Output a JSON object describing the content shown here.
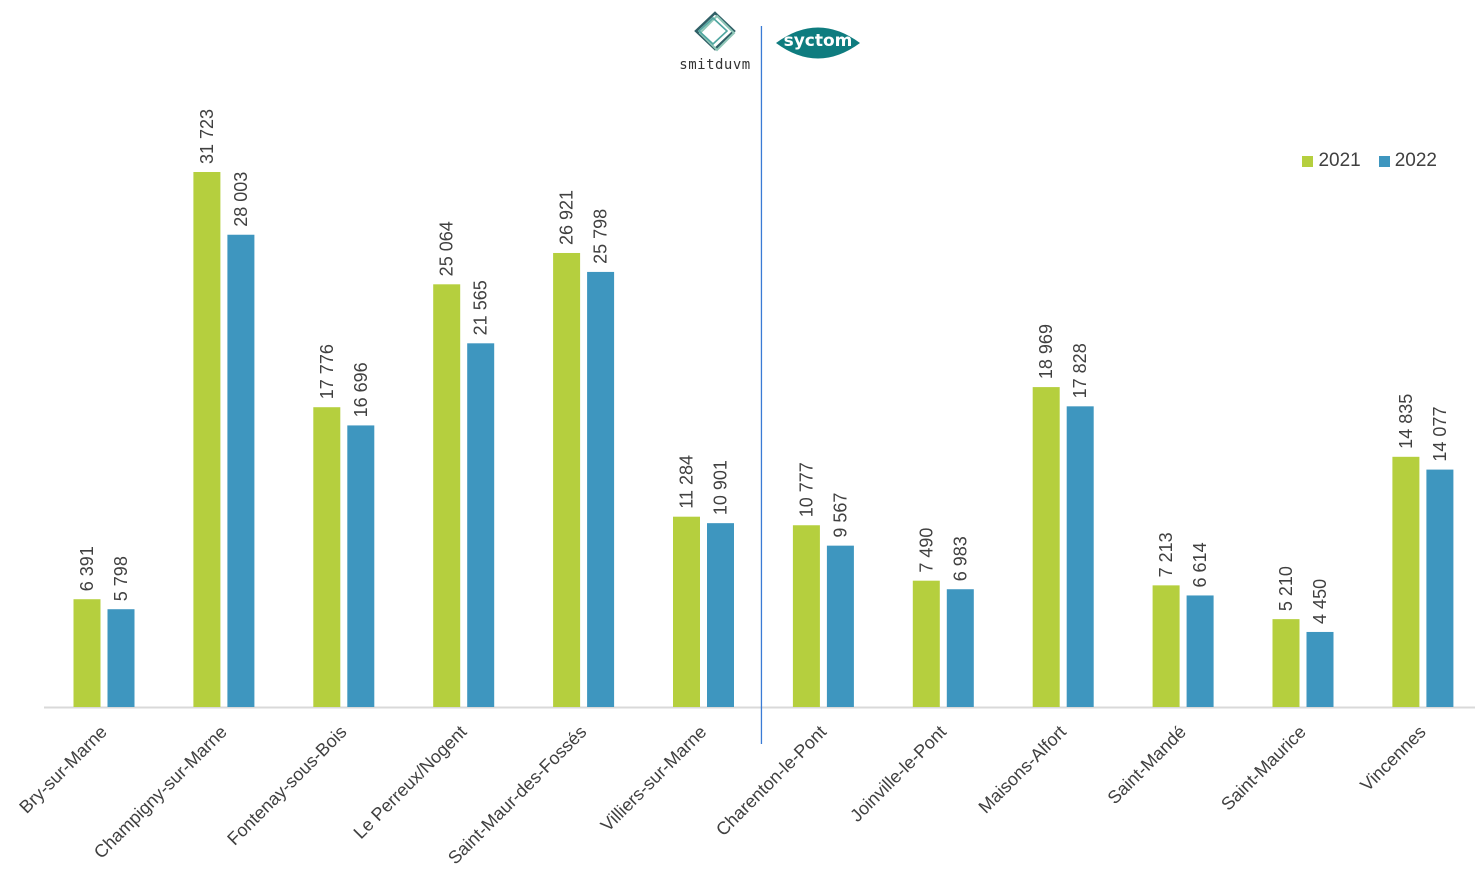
{
  "logos": {
    "left_text": "smitduvm",
    "right_text": "syctom"
  },
  "colors": {
    "series_2021": "#b5cf3e",
    "series_2022": "#3e96bf",
    "logo_teal": "#0f7c7f",
    "axis": "#d9d9d9",
    "divider": "#3a7bd5"
  },
  "chart_data": {
    "type": "bar",
    "categories": [
      "Bry-sur-Marne",
      "Champigny-sur-Marne",
      "Fontenay-sous-Bois",
      "Le Perreux/Nogent",
      "Saint-Maur-des-Fossés",
      "Villiers-sur-Marne",
      "Charenton-le-Pont",
      "Joinville-le-Pont",
      "Maisons-Alfort",
      "Saint-Mandé",
      "Saint-Maurice",
      "Vincennes"
    ],
    "series": [
      {
        "name": "2021",
        "values": [
          6391,
          31723,
          17776,
          25064,
          26921,
          11284,
          10777,
          7490,
          18969,
          7213,
          5210,
          14835
        ],
        "labels": [
          "6 391",
          "31 723",
          "17 776",
          "25 064",
          "26 921",
          "11 284",
          "10 777",
          "7 490",
          "18 969",
          "7 213",
          "5 210",
          "14 835"
        ]
      },
      {
        "name": "2022",
        "values": [
          5798,
          28003,
          16696,
          21565,
          25798,
          10901,
          9567,
          6983,
          17828,
          6614,
          4450,
          14077
        ],
        "labels": [
          "5 798",
          "28 003",
          "16 696",
          "21 565",
          "25 798",
          "10 901",
          "9 567",
          "6 983",
          "17 828",
          "6 614",
          "4 450",
          "14 077"
        ]
      }
    ],
    "ylim": [
      0,
      31723
    ],
    "grid": false,
    "legend_position": "top-right",
    "group_divider_after_index": 5
  }
}
